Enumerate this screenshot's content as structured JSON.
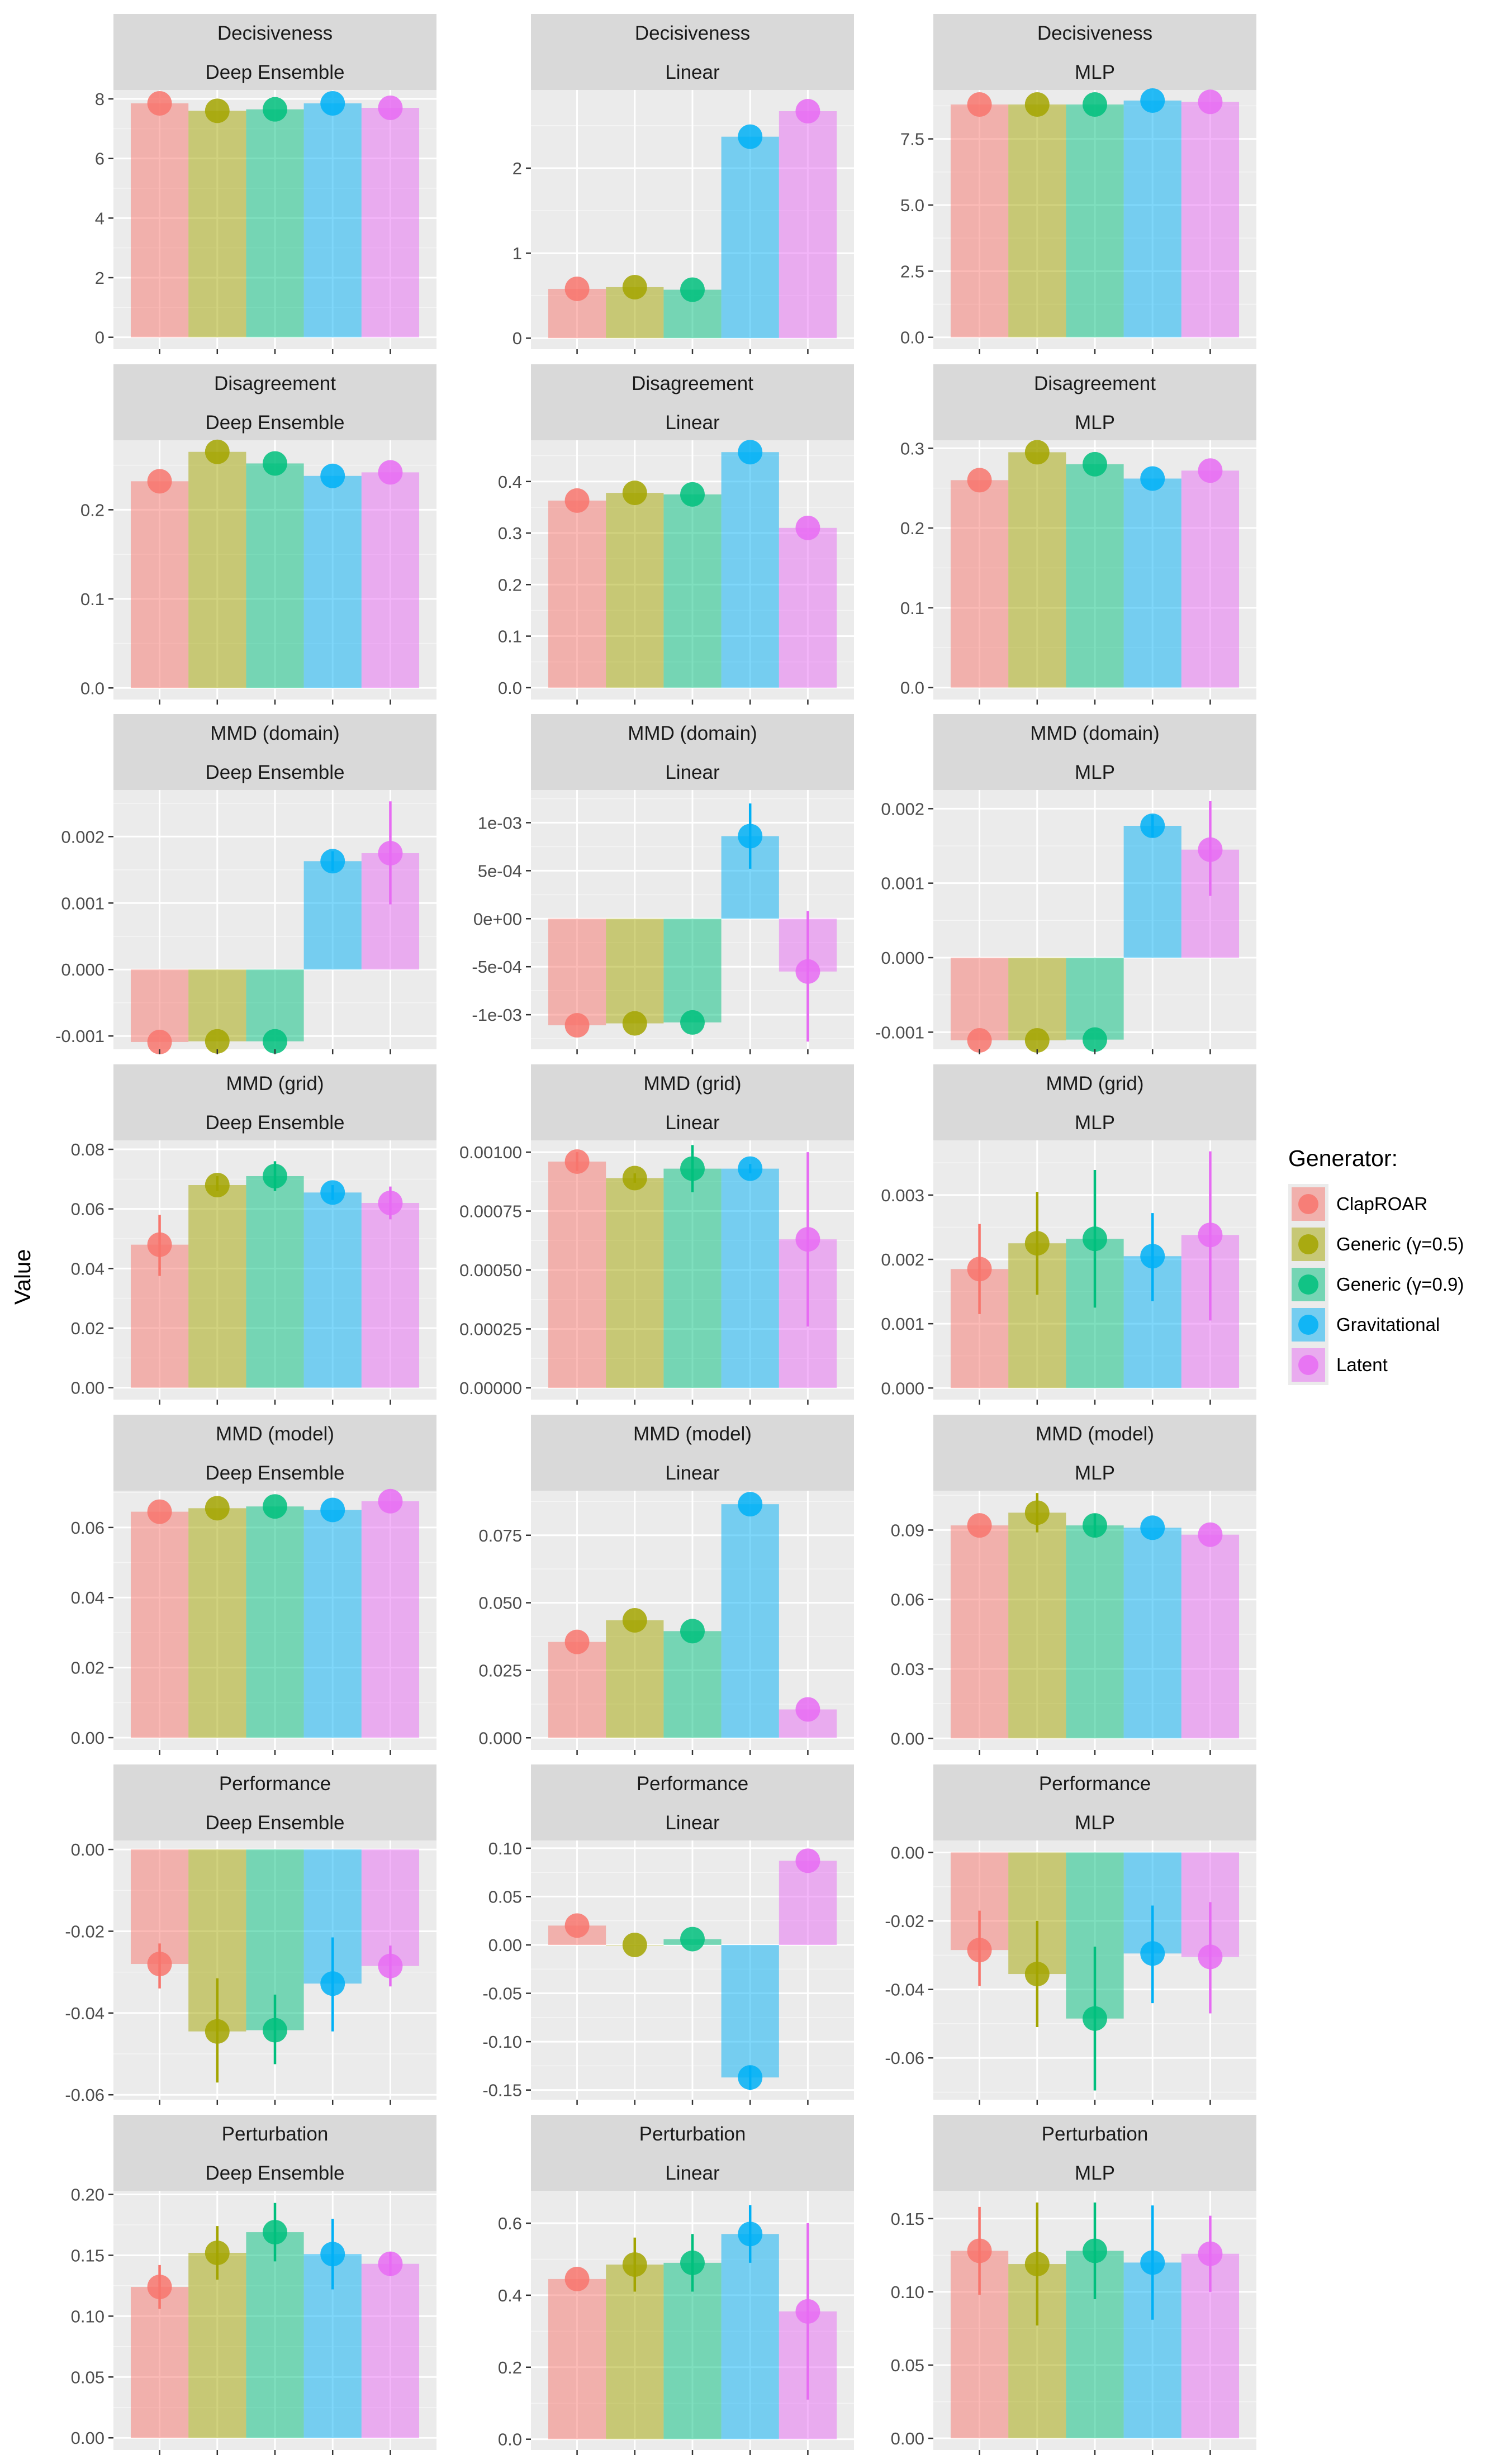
{
  "y_axis_title": "Value",
  "legend": {
    "title": "Generator:",
    "items": [
      {
        "label": "ClapROAR",
        "color": "#F8766D"
      },
      {
        "label": "Generic (γ=0.5)",
        "color": "#A3A500"
      },
      {
        "label": "Generic (γ=0.9)",
        "color": "#00BF7D"
      },
      {
        "label": "Gravitational",
        "color": "#00B0F6"
      },
      {
        "label": "Latent",
        "color": "#E76BF3"
      }
    ]
  },
  "chart_data": [
    {
      "type": "bar",
      "title": "Decisiveness",
      "subtitle": "Deep Ensemble",
      "categories": [
        "ClapROAR",
        "Generic (γ=0.5)",
        "Generic (γ=0.9)",
        "Gravitational",
        "Latent"
      ],
      "values": [
        7.85,
        7.6,
        7.65,
        7.85,
        7.7
      ],
      "errors": [
        [
          7.85,
          7.85
        ],
        [
          7.6,
          7.6
        ],
        [
          7.65,
          7.65
        ],
        [
          7.85,
          7.85
        ],
        [
          7.7,
          7.7
        ]
      ],
      "ylim": [
        -0.4,
        8.3
      ],
      "yticks": [
        0,
        2,
        4,
        6,
        8
      ],
      "yticklabels": [
        "0",
        "2",
        "4",
        "6",
        "8"
      ]
    },
    {
      "type": "bar",
      "title": "Decisiveness",
      "subtitle": "Linear",
      "categories": [
        "ClapROAR",
        "Generic (γ=0.5)",
        "Generic (γ=0.9)",
        "Gravitational",
        "Latent"
      ],
      "values": [
        0.58,
        0.6,
        0.57,
        2.37,
        2.67
      ],
      "errors": [
        [
          0.58,
          0.58
        ],
        [
          0.6,
          0.6
        ],
        [
          0.57,
          0.57
        ],
        [
          2.37,
          2.37
        ],
        [
          2.67,
          2.67
        ]
      ],
      "ylim": [
        -0.13,
        2.92
      ],
      "yticks": [
        0,
        1,
        2
      ],
      "yticklabels": [
        "0",
        "1",
        "2"
      ]
    },
    {
      "type": "bar",
      "title": "Decisiveness",
      "subtitle": "MLP",
      "categories": [
        "ClapROAR",
        "Generic (γ=0.5)",
        "Generic (γ=0.9)",
        "Gravitational",
        "Latent"
      ],
      "values": [
        8.8,
        8.8,
        8.8,
        8.95,
        8.9
      ],
      "errors": [
        [
          8.8,
          8.8
        ],
        [
          8.8,
          8.8
        ],
        [
          8.8,
          8.8
        ],
        [
          8.95,
          8.95
        ],
        [
          8.9,
          8.9
        ]
      ],
      "ylim": [
        -0.45,
        9.35
      ],
      "yticks": [
        0,
        2.5,
        5,
        7.5
      ],
      "yticklabels": [
        "0.0",
        "2.5",
        "5.0",
        "7.5"
      ]
    },
    {
      "type": "bar",
      "title": "Disagreement",
      "subtitle": "Deep Ensemble",
      "categories": [
        "ClapROAR",
        "Generic (γ=0.5)",
        "Generic (γ=0.9)",
        "Gravitational",
        "Latent"
      ],
      "values": [
        0.232,
        0.265,
        0.252,
        0.238,
        0.242
      ],
      "errors": [
        [
          0.232,
          0.232
        ],
        [
          0.265,
          0.265
        ],
        [
          0.252,
          0.252
        ],
        [
          0.238,
          0.238
        ],
        [
          0.242,
          0.242
        ]
      ],
      "ylim": [
        -0.013,
        0.278
      ],
      "yticks": [
        0,
        0.1,
        0.2
      ],
      "yticklabels": [
        "0.0",
        "0.1",
        "0.2"
      ]
    },
    {
      "type": "bar",
      "title": "Disagreement",
      "subtitle": "Linear",
      "categories": [
        "ClapROAR",
        "Generic (γ=0.5)",
        "Generic (γ=0.9)",
        "Gravitational",
        "Latent"
      ],
      "values": [
        0.363,
        0.378,
        0.375,
        0.457,
        0.31
      ],
      "errors": [
        [
          0.363,
          0.363
        ],
        [
          0.378,
          0.378
        ],
        [
          0.375,
          0.375
        ],
        [
          0.457,
          0.457
        ],
        [
          0.31,
          0.31
        ]
      ],
      "ylim": [
        -0.023,
        0.48
      ],
      "yticks": [
        0,
        0.1,
        0.2,
        0.3,
        0.4
      ],
      "yticklabels": [
        "0.0",
        "0.1",
        "0.2",
        "0.3",
        "0.4"
      ]
    },
    {
      "type": "bar",
      "title": "Disagreement",
      "subtitle": "MLP",
      "categories": [
        "ClapROAR",
        "Generic (γ=0.5)",
        "Generic (γ=0.9)",
        "Gravitational",
        "Latent"
      ],
      "values": [
        0.26,
        0.295,
        0.28,
        0.262,
        0.272
      ],
      "errors": [
        [
          0.26,
          0.26
        ],
        [
          0.295,
          0.295
        ],
        [
          0.28,
          0.28
        ],
        [
          0.262,
          0.262
        ],
        [
          0.272,
          0.272
        ]
      ],
      "ylim": [
        -0.015,
        0.31
      ],
      "yticks": [
        0,
        0.1,
        0.2,
        0.3
      ],
      "yticklabels": [
        "0.0",
        "0.1",
        "0.2",
        "0.3"
      ]
    },
    {
      "type": "bar",
      "title": "MMD (domain)",
      "subtitle": "Deep Ensemble",
      "categories": [
        "ClapROAR",
        "Generic (γ=0.5)",
        "Generic (γ=0.9)",
        "Gravitational",
        "Latent"
      ],
      "values": [
        -0.00109,
        -0.00108,
        -0.00108,
        0.00163,
        0.00175
      ],
      "errors": [
        [
          -0.00109,
          -0.00109
        ],
        [
          -0.00108,
          -0.00108
        ],
        [
          -0.00108,
          -0.00108
        ],
        [
          0.00148,
          0.00178
        ],
        [
          0.00098,
          0.00253
        ]
      ],
      "ylim": [
        -0.0012,
        0.0027
      ],
      "yticks": [
        -0.001,
        0,
        0.001,
        0.002
      ],
      "yticklabels": [
        "-0.001",
        "0.000",
        "0.001",
        "0.002"
      ]
    },
    {
      "type": "bar",
      "title": "MMD (domain)",
      "subtitle": "Linear",
      "categories": [
        "ClapROAR",
        "Generic (γ=0.5)",
        "Generic (γ=0.9)",
        "Gravitational",
        "Latent"
      ],
      "values": [
        -0.00111,
        -0.00109,
        -0.00108,
        0.00086,
        -0.00055
      ],
      "errors": [
        [
          -0.00111,
          -0.00111
        ],
        [
          -0.00109,
          -0.00109
        ],
        [
          -0.00108,
          -0.00108
        ],
        [
          0.00052,
          0.0012
        ],
        [
          -0.00128,
          8e-05
        ]
      ],
      "ylim": [
        -0.00136,
        0.00134
      ],
      "yticks": [
        -0.001,
        -0.0005,
        0,
        0.0005,
        0.001
      ],
      "yticklabels": [
        "-1e-03",
        "-5e-04",
        "0e+00",
        "5e-04",
        "1e-03"
      ]
    },
    {
      "type": "bar",
      "title": "MMD (domain)",
      "subtitle": "MLP",
      "categories": [
        "ClapROAR",
        "Generic (γ=0.5)",
        "Generic (γ=0.9)",
        "Gravitational",
        "Latent"
      ],
      "values": [
        -0.00111,
        -0.00111,
        -0.0011,
        0.00177,
        0.00145
      ],
      "errors": [
        [
          -0.00111,
          -0.00111
        ],
        [
          -0.00111,
          -0.00111
        ],
        [
          -0.0011,
          -0.0011
        ],
        [
          0.00162,
          0.00192
        ],
        [
          0.00083,
          0.0021
        ]
      ],
      "ylim": [
        -0.00123,
        0.00225
      ],
      "yticks": [
        -0.001,
        0,
        0.001,
        0.002
      ],
      "yticklabels": [
        "-0.001",
        "0.000",
        "0.001",
        "0.002"
      ]
    },
    {
      "type": "bar",
      "title": "MMD (grid)",
      "subtitle": "Deep Ensemble",
      "categories": [
        "ClapROAR",
        "Generic (γ=0.5)",
        "Generic (γ=0.9)",
        "Gravitational",
        "Latent"
      ],
      "values": [
        0.048,
        0.068,
        0.071,
        0.0655,
        0.062
      ],
      "errors": [
        [
          0.0375,
          0.058
        ],
        [
          0.066,
          0.071
        ],
        [
          0.066,
          0.076
        ],
        [
          0.063,
          0.068
        ],
        [
          0.0565,
          0.0675
        ]
      ],
      "ylim": [
        -0.004,
        0.083
      ],
      "yticks": [
        0,
        0.02,
        0.04,
        0.06,
        0.08
      ],
      "yticklabels": [
        "0.00",
        "0.02",
        "0.04",
        "0.06",
        "0.08"
      ]
    },
    {
      "type": "bar",
      "title": "MMD (grid)",
      "subtitle": "Linear",
      "categories": [
        "ClapROAR",
        "Generic (γ=0.5)",
        "Generic (γ=0.9)",
        "Gravitational",
        "Latent"
      ],
      "values": [
        0.00096,
        0.00089,
        0.00093,
        0.00093,
        0.00063
      ],
      "errors": [
        [
          0.00092,
          0.001
        ],
        [
          0.00087,
          0.00091
        ],
        [
          0.00083,
          0.00103
        ],
        [
          0.00091,
          0.00095
        ],
        [
          0.00026,
          0.001
        ]
      ],
      "ylim": [
        -5e-05,
        0.00105
      ],
      "yticks": [
        0,
        0.00025,
        0.0005,
        0.00075,
        0.001
      ],
      "yticklabels": [
        "0.00000",
        "0.00025",
        "0.00050",
        "0.00075",
        "0.00100"
      ]
    },
    {
      "type": "bar",
      "title": "MMD (grid)",
      "subtitle": "MLP",
      "categories": [
        "ClapROAR",
        "Generic (γ=0.5)",
        "Generic (γ=0.9)",
        "Gravitational",
        "Latent"
      ],
      "values": [
        0.00185,
        0.00225,
        0.00232,
        0.00205,
        0.00238
      ],
      "errors": [
        [
          0.00115,
          0.00255
        ],
        [
          0.00145,
          0.00305
        ],
        [
          0.00125,
          0.00339
        ],
        [
          0.00135,
          0.00272
        ],
        [
          0.00105,
          0.00368
        ]
      ],
      "ylim": [
        -0.00018,
        0.00385
      ],
      "yticks": [
        0,
        0.001,
        0.002,
        0.003
      ],
      "yticklabels": [
        "0.000",
        "0.001",
        "0.002",
        "0.003"
      ]
    },
    {
      "type": "bar",
      "title": "MMD (model)",
      "subtitle": "Deep Ensemble",
      "categories": [
        "ClapROAR",
        "Generic (γ=0.5)",
        "Generic (γ=0.9)",
        "Gravitational",
        "Latent"
      ],
      "values": [
        0.0645,
        0.0655,
        0.066,
        0.065,
        0.0675
      ],
      "errors": [
        [
          0.0645,
          0.0645
        ],
        [
          0.0655,
          0.0655
        ],
        [
          0.066,
          0.066
        ],
        [
          0.065,
          0.065
        ],
        [
          0.0675,
          0.0675
        ]
      ],
      "ylim": [
        -0.0035,
        0.0705
      ],
      "yticks": [
        0,
        0.02,
        0.04,
        0.06
      ],
      "yticklabels": [
        "0.00",
        "0.02",
        "0.04",
        "0.06"
      ]
    },
    {
      "type": "bar",
      "title": "MMD (model)",
      "subtitle": "Linear",
      "categories": [
        "ClapROAR",
        "Generic (γ=0.5)",
        "Generic (γ=0.9)",
        "Gravitational",
        "Latent"
      ],
      "values": [
        0.0355,
        0.0435,
        0.0395,
        0.0865,
        0.0105
      ],
      "errors": [
        [
          0.0355,
          0.0355
        ],
        [
          0.0435,
          0.0435
        ],
        [
          0.0395,
          0.0395
        ],
        [
          0.0865,
          0.0865
        ],
        [
          0.0105,
          0.0105
        ]
      ],
      "ylim": [
        -0.0045,
        0.0915
      ],
      "yticks": [
        0,
        0.025,
        0.05,
        0.075
      ],
      "yticklabels": [
        "0.000",
        "0.025",
        "0.050",
        "0.075"
      ]
    },
    {
      "type": "bar",
      "title": "MMD (model)",
      "subtitle": "MLP",
      "categories": [
        "ClapROAR",
        "Generic (γ=0.5)",
        "Generic (γ=0.9)",
        "Gravitational",
        "Latent"
      ],
      "values": [
        0.092,
        0.0975,
        0.092,
        0.091,
        0.088
      ],
      "errors": [
        [
          0.092,
          0.092
        ],
        [
          0.089,
          0.106
        ],
        [
          0.087,
          0.097
        ],
        [
          0.091,
          0.091
        ],
        [
          0.088,
          0.088
        ]
      ],
      "ylim": [
        -0.005,
        0.107
      ],
      "yticks": [
        0,
        0.03,
        0.06,
        0.09
      ],
      "yticklabels": [
        "0.00",
        "0.03",
        "0.06",
        "0.09"
      ]
    },
    {
      "type": "bar",
      "title": "Performance",
      "subtitle": "Deep Ensemble",
      "categories": [
        "ClapROAR",
        "Generic (γ=0.5)",
        "Generic (γ=0.9)",
        "Gravitational",
        "Latent"
      ],
      "values": [
        -0.028,
        -0.0445,
        -0.0442,
        -0.0328,
        -0.0285
      ],
      "errors": [
        [
          -0.034,
          -0.023
        ],
        [
          -0.057,
          -0.0315
        ],
        [
          -0.0525,
          -0.0355
        ],
        [
          -0.0445,
          -0.0215
        ],
        [
          -0.0335,
          -0.0235
        ]
      ],
      "ylim": [
        -0.0612,
        0.0022
      ],
      "yticks": [
        -0.06,
        -0.04,
        -0.02,
        0
      ],
      "yticklabels": [
        "-0.06",
        "-0.04",
        "-0.02",
        "0.00"
      ]
    },
    {
      "type": "bar",
      "title": "Performance",
      "subtitle": "Linear",
      "categories": [
        "ClapROAR",
        "Generic (γ=0.5)",
        "Generic (γ=0.9)",
        "Gravitational",
        "Latent"
      ],
      "values": [
        0.02,
        0,
        0.006,
        -0.137,
        0.087
      ],
      "errors": [
        [
          0.02,
          0.02
        ],
        [
          0,
          0
        ],
        [
          0.006,
          0.006
        ],
        [
          -0.15,
          -0.125
        ],
        [
          0.087,
          0.087
        ]
      ],
      "ylim": [
        -0.16,
        0.108
      ],
      "yticks": [
        -0.15,
        -0.1,
        -0.05,
        0,
        0.05,
        0.1
      ],
      "yticklabels": [
        "-0.15",
        "-0.10",
        "-0.05",
        "0.00",
        "0.05",
        "0.10"
      ]
    },
    {
      "type": "bar",
      "title": "Performance",
      "subtitle": "MLP",
      "categories": [
        "ClapROAR",
        "Generic (γ=0.5)",
        "Generic (γ=0.9)",
        "Gravitational",
        "Latent"
      ],
      "values": [
        -0.0285,
        -0.0355,
        -0.0485,
        -0.0295,
        -0.0305
      ],
      "errors": [
        [
          -0.039,
          -0.017
        ],
        [
          -0.051,
          -0.02
        ],
        [
          -0.0695,
          -0.0275
        ],
        [
          -0.044,
          -0.0155
        ],
        [
          -0.047,
          -0.0145
        ]
      ],
      "ylim": [
        -0.0722,
        0.0035
      ],
      "yticks": [
        -0.06,
        -0.04,
        -0.02,
        0
      ],
      "yticklabels": [
        "-0.06",
        "-0.04",
        "-0.02",
        "0.00"
      ]
    },
    {
      "type": "bar",
      "title": "Perturbation",
      "subtitle": "Deep Ensemble",
      "categories": [
        "ClapROAR",
        "Generic (γ=0.5)",
        "Generic (γ=0.9)",
        "Gravitational",
        "Latent"
      ],
      "values": [
        0.124,
        0.152,
        0.169,
        0.151,
        0.143
      ],
      "errors": [
        [
          0.106,
          0.142
        ],
        [
          0.13,
          0.174
        ],
        [
          0.145,
          0.193
        ],
        [
          0.122,
          0.18
        ],
        [
          0.133,
          0.153
        ]
      ],
      "ylim": [
        -0.01,
        0.203
      ],
      "yticks": [
        0,
        0.05,
        0.1,
        0.15,
        0.2
      ],
      "yticklabels": [
        "0.00",
        "0.05",
        "0.10",
        "0.15",
        "0.20"
      ]
    },
    {
      "type": "bar",
      "title": "Perturbation",
      "subtitle": "Linear",
      "categories": [
        "ClapROAR",
        "Generic (γ=0.5)",
        "Generic (γ=0.9)",
        "Gravitational",
        "Latent"
      ],
      "values": [
        0.445,
        0.485,
        0.49,
        0.57,
        0.355
      ],
      "errors": [
        [
          0.445,
          0.445
        ],
        [
          0.41,
          0.56
        ],
        [
          0.41,
          0.57
        ],
        [
          0.49,
          0.65
        ],
        [
          0.11,
          0.6
        ]
      ],
      "ylim": [
        -0.03,
        0.69
      ],
      "yticks": [
        0,
        0.2,
        0.4,
        0.6
      ],
      "yticklabels": [
        "0.0",
        "0.2",
        "0.4",
        "0.6"
      ]
    },
    {
      "type": "bar",
      "title": "Perturbation",
      "subtitle": "MLP",
      "categories": [
        "ClapROAR",
        "Generic (γ=0.5)",
        "Generic (γ=0.9)",
        "Gravitational",
        "Latent"
      ],
      "values": [
        0.128,
        0.119,
        0.128,
        0.12,
        0.126
      ],
      "errors": [
        [
          0.098,
          0.158
        ],
        [
          0.077,
          0.161
        ],
        [
          0.095,
          0.161
        ],
        [
          0.081,
          0.159
        ],
        [
          0.1,
          0.152
        ]
      ],
      "ylim": [
        -0.008,
        0.169
      ],
      "yticks": [
        0,
        0.05,
        0.1,
        0.15
      ],
      "yticklabels": [
        "0.00",
        "0.05",
        "0.10",
        "0.15"
      ]
    }
  ]
}
